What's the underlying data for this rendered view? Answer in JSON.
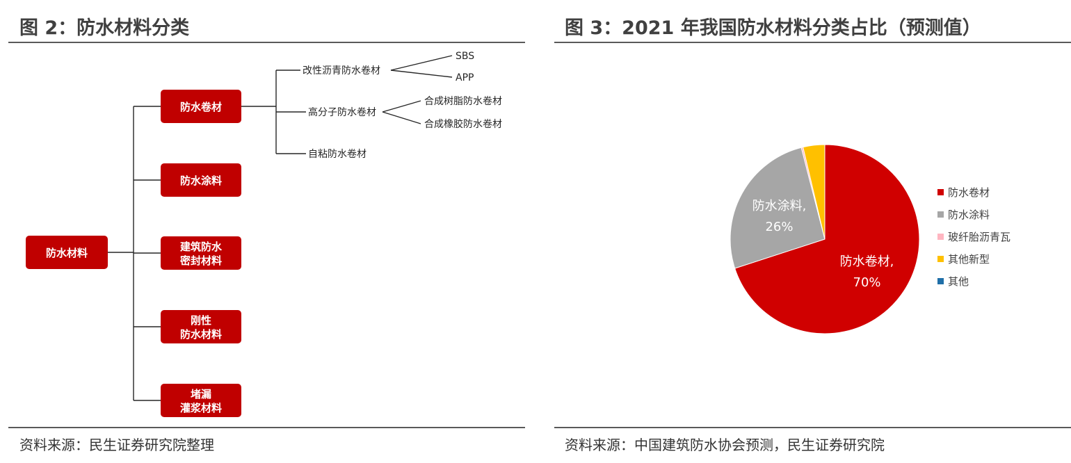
{
  "left_panel": {
    "title": "图 2：防水材料分类",
    "source": "资料来源：民生证券研究院整理",
    "diagram": {
      "root": "防水材料",
      "categories": [
        {
          "line1": "防水卷材",
          "line2": ""
        },
        {
          "line1": "防水涂料",
          "line2": ""
        },
        {
          "line1": "建筑防水",
          "line2": "密封材料"
        },
        {
          "line1": "刚性",
          "line2": "防水材料"
        },
        {
          "line1": "堵漏",
          "line2": "灌浆材料"
        }
      ],
      "membrane_types": [
        "改性沥青防水卷材",
        "高分子防水卷材",
        "自粘防水卷材"
      ],
      "modified_bitumen_subtypes": [
        "SBS",
        "APP"
      ],
      "polymer_subtypes": [
        "合成树脂防水卷材",
        "合成橡胶防水卷材"
      ]
    }
  },
  "right_panel": {
    "title": "图 3：2021 年我国防水材料分类占比（预测值）",
    "source": "资料来源：中国建筑防水协会预测，民生证券研究院",
    "chart_data": {
      "type": "pie",
      "title": "",
      "unit": "%",
      "slices": [
        {
          "name": "防水卷材",
          "value": 70,
          "color": "#d00000",
          "label_line1": "防水卷材,",
          "label_line2": "70%"
        },
        {
          "name": "防水涂料",
          "value": 26,
          "color": "#a6a6a6",
          "label_line1": "防水涂料,",
          "label_line2": "26%"
        },
        {
          "name": "玻纤胎沥青瓦",
          "value": 0.3,
          "color": "#ffb6c1",
          "label_line1": "",
          "label_line2": ""
        },
        {
          "name": "其他新型",
          "value": 3.7,
          "color": "#ffc000",
          "label_line1": "",
          "label_line2": ""
        },
        {
          "name": "其他",
          "value": 0,
          "color": "#1f6fa8",
          "label_line1": "",
          "label_line2": ""
        }
      ],
      "legend_position": "right"
    }
  }
}
